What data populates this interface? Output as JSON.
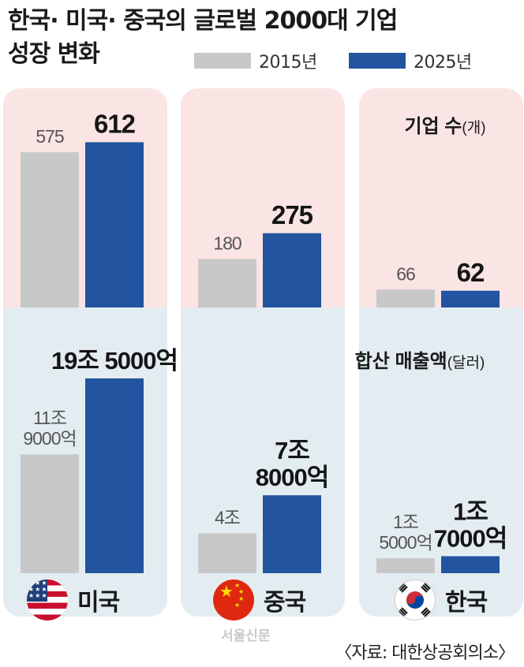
{
  "title_line1": "한국· 미국· 중국의 글로벌 2000대 기업",
  "title_line2": "성장 변화",
  "legend": [
    {
      "label": "2015년",
      "color": "#c8c8c8"
    },
    {
      "label": "2025년",
      "color": "#22549f"
    }
  ],
  "countries": [
    {
      "name": "미국",
      "flag": "us-flag-icon"
    },
    {
      "name": "중국",
      "flag": "china-flag-icon"
    },
    {
      "name": "한국",
      "flag": "korea-flag-icon"
    }
  ],
  "chart_data": [
    {
      "type": "bar",
      "title": "기업 수",
      "unit": "(개)",
      "categories": [
        "미국",
        "중국",
        "한국"
      ],
      "series": [
        {
          "name": "2015년",
          "values": [
            575,
            180,
            66
          ],
          "labels": [
            "575",
            "180",
            "66"
          ]
        },
        {
          "name": "2025년",
          "values": [
            612,
            275,
            62
          ],
          "labels": [
            "612",
            "275",
            "62"
          ]
        }
      ]
    },
    {
      "type": "bar",
      "title": "합산 매출액",
      "unit": "(달러)",
      "categories": [
        "미국",
        "중국",
        "한국"
      ],
      "series": [
        {
          "name": "2015년",
          "values": [
            11.9,
            4.0,
            1.5
          ],
          "labels": [
            [
              "11조",
              "9000억"
            ],
            [
              "4조"
            ],
            [
              "1조",
              "5000억"
            ]
          ]
        },
        {
          "name": "2025년",
          "values": [
            19.5,
            7.8,
            1.7
          ],
          "labels": [
            [
              "19조 5000억"
            ],
            [
              "7조",
              "8000억"
            ],
            [
              "1조",
              "7000억"
            ]
          ]
        }
      ]
    }
  ],
  "watermark": "서울신문",
  "source": "〈자료: 대한상공회의소〉"
}
